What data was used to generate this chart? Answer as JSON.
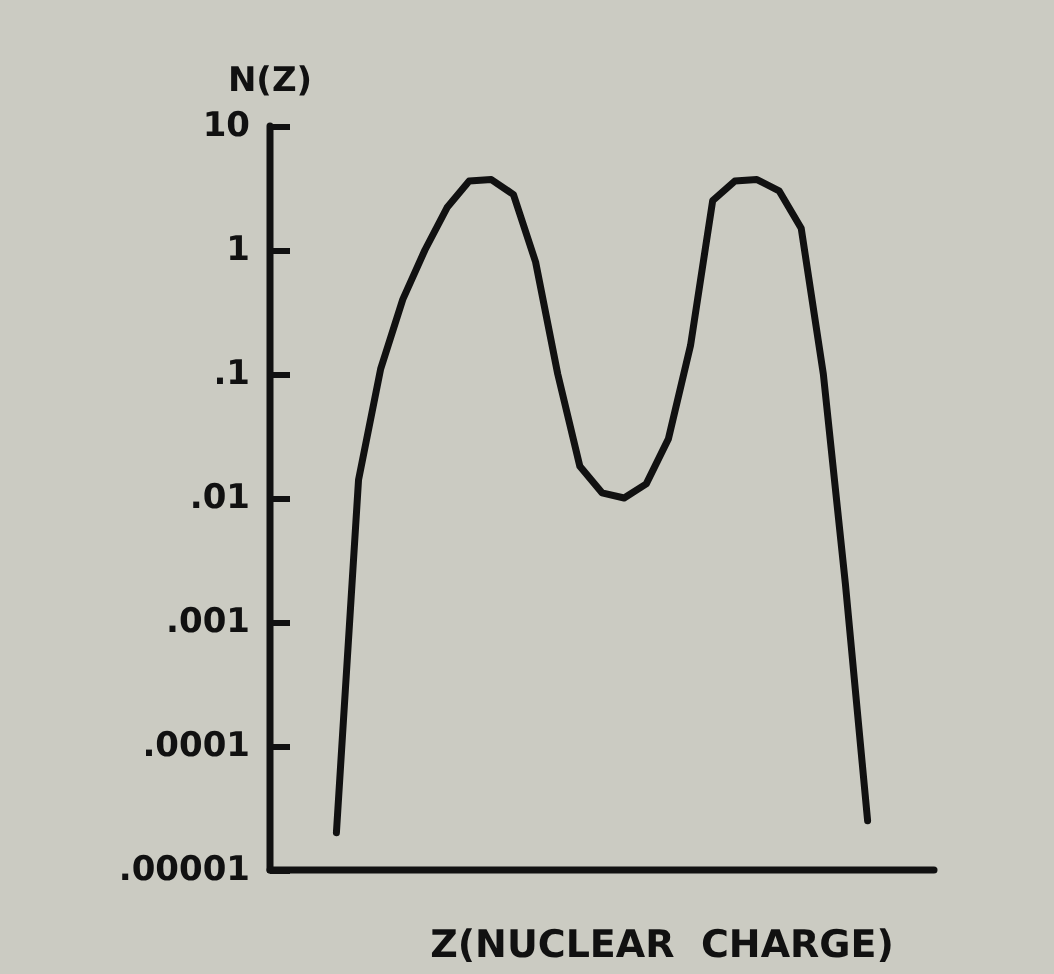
{
  "chart_data": {
    "type": "line",
    "xlabel": "Z(NUCLEAR  CHARGE)",
    "ylabel": "N(Z)",
    "categories": [
      null,
      null,
      null,
      null,
      null,
      null,
      null,
      null,
      null,
      null,
      null,
      null,
      null,
      null,
      null,
      null,
      null,
      null,
      null,
      null,
      null,
      null,
      null,
      null,
      null,
      null,
      null,
      null,
      null,
      null,
      null
    ],
    "values": [
      null,
      null,
      null,
      2e-05,
      0.014,
      0.11,
      0.4,
      1,
      2.2,
      3.6,
      3.7,
      2.8,
      0.8,
      0.1,
      0.018,
      0.011,
      0.01,
      0.013,
      0.03,
      0.17,
      2.5,
      3.6,
      3.7,
      3.0,
      1.5,
      0.1,
      0.002,
      2.5e-05,
      null,
      null,
      null
    ],
    "color": "#111111",
    "log": true,
    "marker": "none",
    "line_style": "solid",
    "ylim": [
      1e-05,
      10
    ],
    "yticks": [
      10,
      1,
      {
        "value": 0.1,
        "label": ".1"
      },
      {
        "value": 0.01,
        "label": ".01"
      },
      {
        "value": 0.001,
        "label": ".001"
      },
      {
        "value": 0.0001,
        "label": ".0001"
      },
      {
        "value": 1e-05,
        "label": ".00001"
      }
    ]
  }
}
